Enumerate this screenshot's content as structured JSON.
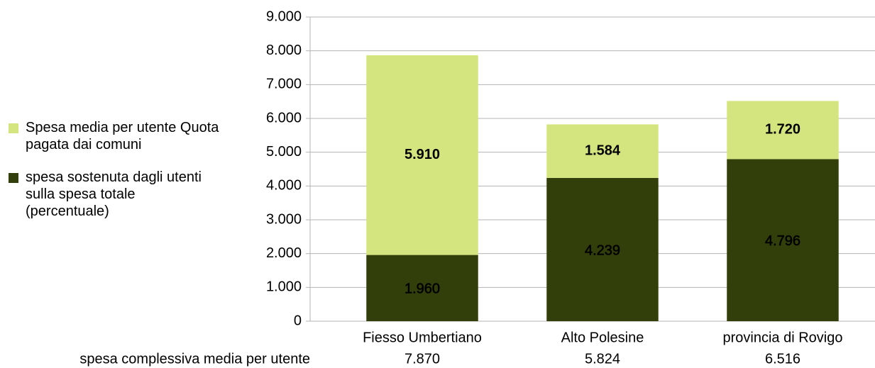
{
  "chart_data": {
    "type": "stacked_bar",
    "categories": [
      "Fiesso Umbertiano",
      "Alto Polesine",
      "provincia di Rovigo"
    ],
    "series": [
      {
        "name": "spesa sostenuta dagli utenti sulla spesa totale (percentuale)",
        "color": "#333f0b",
        "values": [
          1960,
          4239,
          4796
        ],
        "value_labels": [
          "1.960",
          "4.239",
          "4.796"
        ]
      },
      {
        "name": "Spesa media per utente Quota pagata dai comuni",
        "color": "#d4e57f",
        "values": [
          5910,
          1584,
          1720
        ],
        "value_labels": [
          "5.910",
          "1.584",
          "1.720"
        ]
      }
    ],
    "ylim": [
      0,
      9000
    ],
    "yticks": [
      0,
      {
        "value": 1000,
        "label": "1.000"
      },
      {
        "value": 2000,
        "label": "2.000"
      },
      {
        "value": 3000,
        "label": "3.000"
      },
      {
        "value": 4000,
        "label": "4.000"
      },
      {
        "value": 5000,
        "label": "5.000"
      },
      {
        "value": 6000,
        "label": "6.000"
      },
      {
        "value": 7000,
        "label": "7.000"
      },
      {
        "value": 8000,
        "label": "8.000"
      },
      {
        "value": 9000,
        "label": "9.000"
      }
    ],
    "grid": true,
    "legend": "left",
    "totals_row": {
      "label": "spesa complessiva media per utente",
      "values": [
        "7.870",
        "5.824",
        "6.516"
      ]
    }
  }
}
